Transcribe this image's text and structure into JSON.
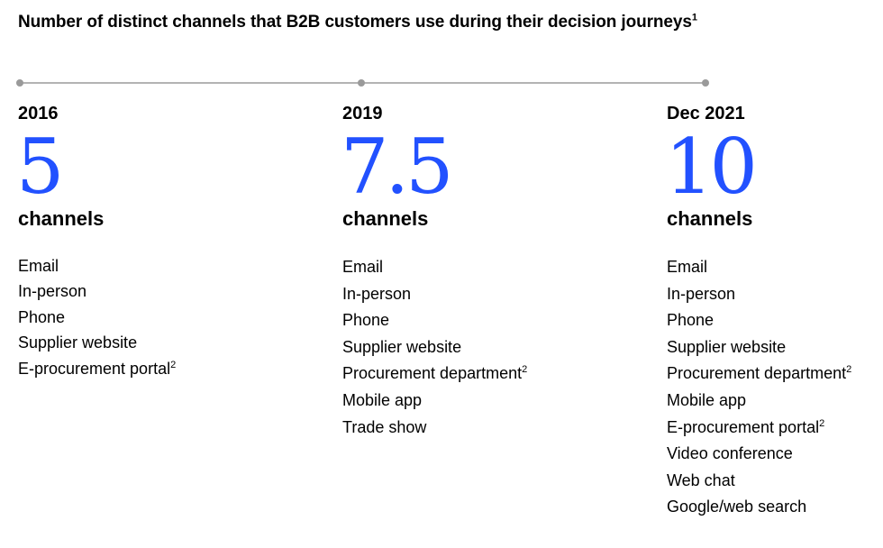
{
  "chart_data": {
    "type": "table",
    "title": "Number of distinct channels that B2B customers use during their decision journeys",
    "title_footnote": "1",
    "unit_label": "channels",
    "footnote_marker": "2",
    "accent_color": "#2251ff",
    "timeline_color": "#9a9a9a",
    "series": [
      {
        "period": "2016",
        "value": "5",
        "channels": [
          {
            "label": "Email",
            "note": ""
          },
          {
            "label": "In-person",
            "note": ""
          },
          {
            "label": "Phone",
            "note": ""
          },
          {
            "label": "Supplier website",
            "note": ""
          },
          {
            "label": "E-procurement portal",
            "note": "2"
          }
        ]
      },
      {
        "period": "2019",
        "value": "7.5",
        "channels": [
          {
            "label": "Email",
            "note": ""
          },
          {
            "label": "In-person",
            "note": ""
          },
          {
            "label": "Phone",
            "note": ""
          },
          {
            "label": "Supplier website",
            "note": ""
          },
          {
            "label": "Procurement department",
            "note": "2"
          },
          {
            "label": "Mobile app",
            "note": ""
          },
          {
            "label": "Trade show",
            "note": ""
          }
        ]
      },
      {
        "period": "Dec 2021",
        "value": "10",
        "channels": [
          {
            "label": "Email",
            "note": ""
          },
          {
            "label": "In-person",
            "note": ""
          },
          {
            "label": "Phone",
            "note": ""
          },
          {
            "label": "Supplier website",
            "note": ""
          },
          {
            "label": "Procurement department",
            "note": "2"
          },
          {
            "label": "Mobile app",
            "note": ""
          },
          {
            "label": "E-procurement portal",
            "note": "2"
          },
          {
            "label": "Video conference",
            "note": ""
          },
          {
            "label": "Web chat",
            "note": ""
          },
          {
            "label": "Google/web search",
            "note": ""
          }
        ]
      }
    ]
  }
}
